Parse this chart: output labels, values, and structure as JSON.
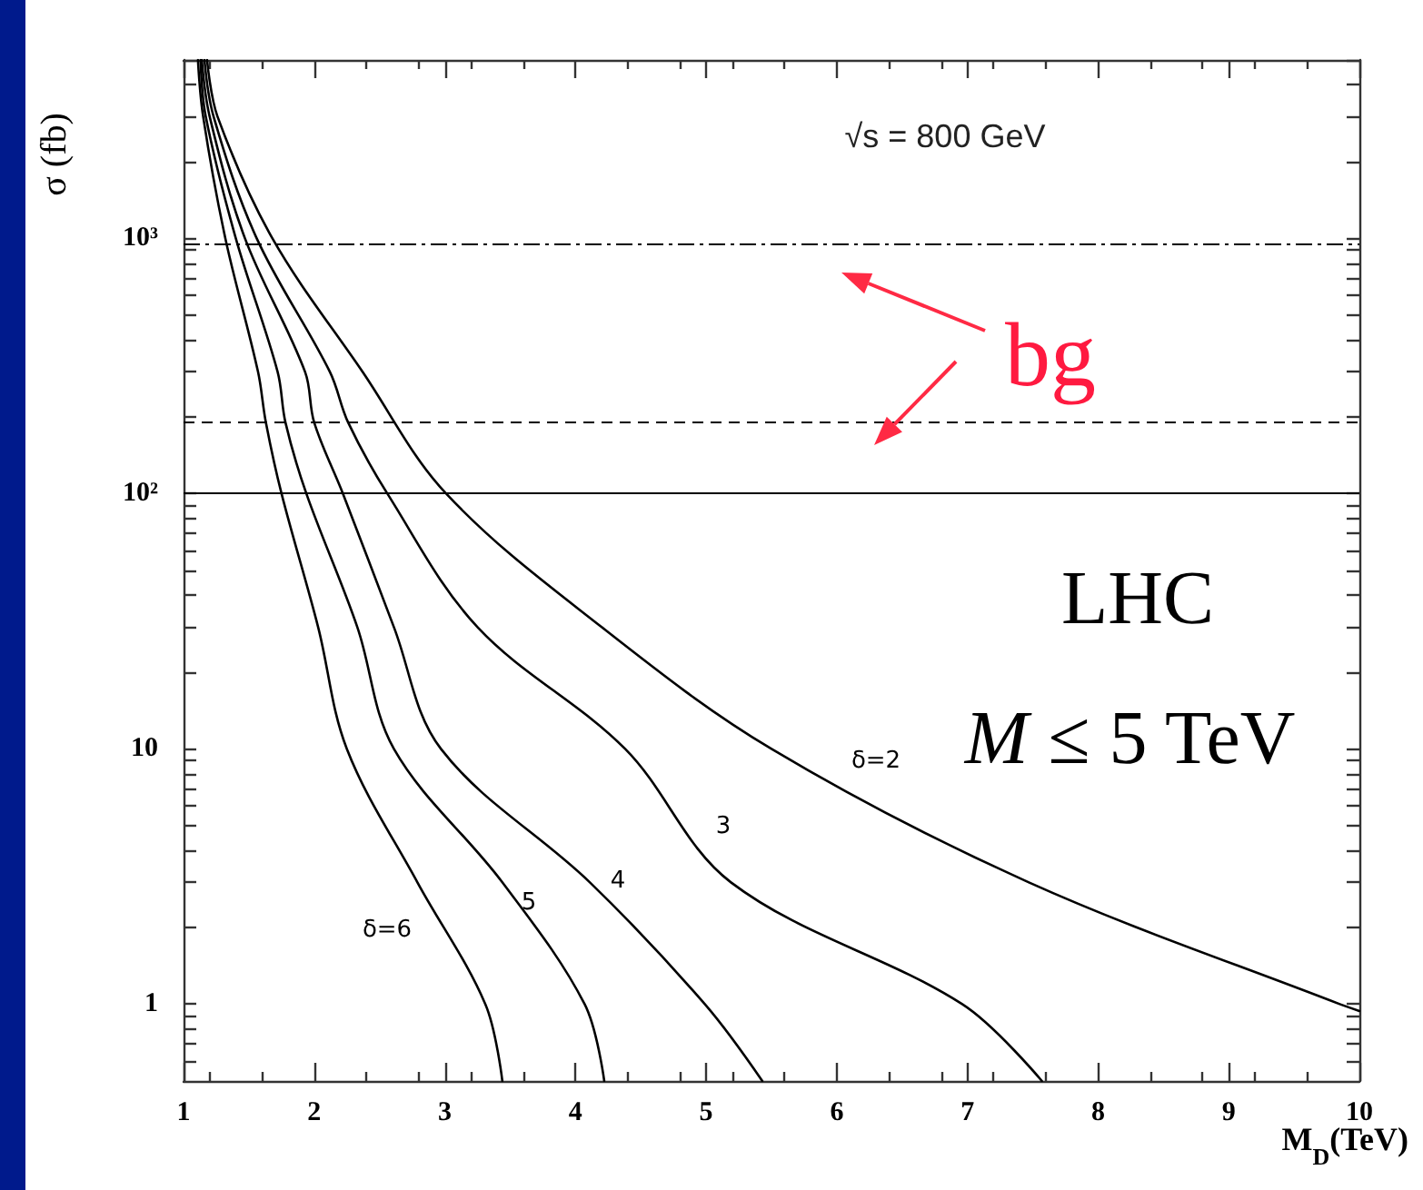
{
  "chart_data": {
    "type": "line",
    "xlabel": "M$_{D}$(TeV)",
    "ylabel": "σ (fb)",
    "log": "y",
    "marker": "none",
    "line_style": "solid",
    "xlim": [
      1,
      10
    ],
    "xticks": [
      1,
      2,
      3,
      4,
      5,
      6,
      7,
      8,
      9,
      10
    ],
    "ylim": [
      0.5,
      5000
    ],
    "yticks": [
      {
        "value": 0.6,
        "label": null
      },
      {
        "value": 0.7,
        "label": null
      },
      {
        "value": 0.8,
        "label": null
      },
      {
        "value": 0.9,
        "label": null
      },
      1,
      {
        "value": 2,
        "label": null
      },
      {
        "value": 3,
        "label": null
      },
      {
        "value": 4,
        "label": null
      },
      {
        "value": 5,
        "label": null
      },
      {
        "value": 6,
        "label": null
      },
      {
        "value": 7,
        "label": null
      },
      {
        "value": 8,
        "label": null
      },
      {
        "value": 9,
        "label": null
      },
      10,
      {
        "value": 20,
        "label": null
      },
      {
        "value": 30,
        "label": null
      },
      {
        "value": 40,
        "label": null
      },
      {
        "value": 50,
        "label": null
      },
      {
        "value": 60,
        "label": null
      },
      {
        "value": 70,
        "label": null
      },
      {
        "value": 80,
        "label": null
      },
      {
        "value": 90,
        "label": null
      },
      {
        "value": 100,
        "label": "10²"
      },
      {
        "value": 200,
        "label": null
      },
      {
        "value": 300,
        "label": null
      },
      {
        "value": 400,
        "label": null
      },
      {
        "value": 500,
        "label": null
      },
      {
        "value": 600,
        "label": null
      },
      {
        "value": 700,
        "label": null
      },
      {
        "value": 800,
        "label": null
      },
      {
        "value": 900,
        "label": null
      },
      {
        "value": 1000,
        "label": "10³"
      },
      {
        "value": 2000,
        "label": null
      },
      {
        "value": 3000,
        "label": null
      },
      {
        "value": 4000,
        "label": null
      },
      {
        "value": 5000,
        "label": null
      }
    ],
    "series": [
      {
        "name": "δ=2",
        "color": "#000000",
        "x": [
          1.18,
          1.26,
          1.68,
          2.37,
          3.01,
          4.2,
          5.5,
          7.47,
          9.85,
          10
        ],
        "values": [
          5000,
          3000,
          1000,
          300,
          100,
          30,
          10,
          3,
          1,
          0.94
        ]
      },
      {
        "name": "3",
        "color": "#000000",
        "x": [
          1.16,
          1.23,
          1.56,
          2.12,
          2.26,
          2.56,
          3.25,
          4.38,
          5.19,
          6.96,
          7.57
        ],
        "values": [
          5000,
          3000,
          1000,
          300,
          190,
          100,
          30,
          10,
          3,
          1,
          0.5
        ]
      },
      {
        "name": "4",
        "color": "#000000",
        "x": [
          1.14,
          1.2,
          1.47,
          1.93,
          2.0,
          2.22,
          2.61,
          2.97,
          4.11,
          4.99,
          5.43
        ],
        "values": [
          5000,
          3000,
          1000,
          300,
          190,
          100,
          30,
          10,
          3,
          1,
          0.5
        ]
      },
      {
        "name": "5",
        "color": "#000000",
        "x": [
          1.13,
          1.17,
          1.4,
          1.72,
          1.78,
          1.94,
          2.33,
          2.61,
          3.44,
          4.07,
          4.22
        ],
        "values": [
          5000,
          3000,
          1000,
          300,
          190,
          100,
          30,
          10,
          3,
          1,
          0.5
        ]
      },
      {
        "name": "δ=6",
        "color": "#000000",
        "x": [
          1.11,
          1.15,
          1.32,
          1.57,
          1.63,
          1.75,
          2.03,
          2.25,
          2.79,
          3.31,
          3.44
        ],
        "values": [
          5000,
          3000,
          1000,
          300,
          190,
          100,
          30,
          10,
          3,
          1,
          0.5
        ]
      }
    ],
    "ref_lines": [
      {
        "axis": "y",
        "value": 950,
        "line_style": "dotted",
        "color": "#000000"
      },
      {
        "axis": "y",
        "value": 190,
        "line_style": "dashed",
        "color": "#000000"
      },
      {
        "axis": "y",
        "value": 100,
        "line_style": "solid",
        "color": "#000000"
      }
    ],
    "annotations": [
      "√s = 800 GeV",
      "bg",
      "LHC",
      "M ≤ 5 TeV"
    ]
  }
}
